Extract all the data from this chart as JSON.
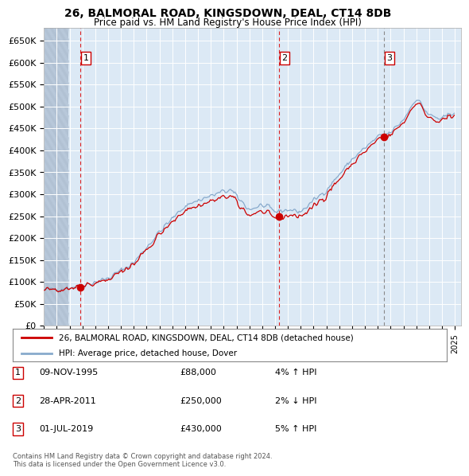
{
  "title": "26, BALMORAL ROAD, KINGSDOWN, DEAL, CT14 8DB",
  "subtitle": "Price paid vs. HM Land Registry's House Price Index (HPI)",
  "ylim": [
    0,
    680000
  ],
  "yticks": [
    0,
    50000,
    100000,
    150000,
    200000,
    250000,
    300000,
    350000,
    400000,
    450000,
    500000,
    550000,
    600000,
    650000
  ],
  "ytick_labels": [
    "£0",
    "£50K",
    "£100K",
    "£150K",
    "£200K",
    "£250K",
    "£300K",
    "£350K",
    "£400K",
    "£450K",
    "£500K",
    "£550K",
    "£600K",
    "£650K"
  ],
  "sale_prices": [
    88000,
    250000,
    430000
  ],
  "sale_labels": [
    "1",
    "2",
    "3"
  ],
  "sale_info": [
    {
      "num": "1",
      "date": "09-NOV-1995",
      "price": "£88,000",
      "hpi": "4% ↑ HPI"
    },
    {
      "num": "2",
      "date": "28-APR-2011",
      "price": "£250,000",
      "hpi": "2% ↓ HPI"
    },
    {
      "num": "3",
      "date": "01-JUL-2019",
      "price": "£430,000",
      "hpi": "5% ↑ HPI"
    }
  ],
  "legend_red": "26, BALMORAL ROAD, KINGSDOWN, DEAL, CT14 8DB (detached house)",
  "legend_blue": "HPI: Average price, detached house, Dover",
  "copyright": "Contains HM Land Registry data © Crown copyright and database right 2024.\nThis data is licensed under the Open Government Licence v3.0.",
  "bg_color": "#dce9f5",
  "red_line_color": "#cc0000",
  "blue_line_color": "#88aacc",
  "sale_marker_color": "#cc0000",
  "dashed_red_color": "#dd2222",
  "dashed_gray_color": "#888888"
}
